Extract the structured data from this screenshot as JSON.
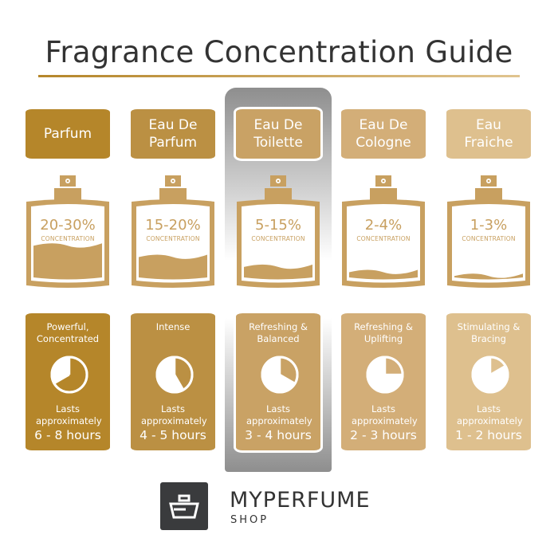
{
  "title": "Fragrance Concentration Guide",
  "concentration_label": "CONCENTRATION",
  "lasts_label": "Lasts approximately",
  "highlighted": "Eau De Toilette",
  "colors": {
    "bottle": "#c8a060",
    "highlight": "#8e8e8e"
  },
  "columns": [
    {
      "name_l1": "Parfum",
      "name_l2": "",
      "color": "#b5862a",
      "concentration": "20-30%",
      "fill_level": 0.45,
      "desc_l1": "Powerful,",
      "desc_l2": "Concentrated",
      "hours": "6 - 8 hours",
      "clock_hours": 8
    },
    {
      "name_l1": "Eau De",
      "name_l2": "Parfum",
      "color": "#bb9043",
      "concentration": "15-20%",
      "fill_level": 0.3,
      "desc_l1": "Intense",
      "desc_l2": "",
      "hours": "4 - 5 hours",
      "clock_hours": 5
    },
    {
      "name_l1": "Eau De",
      "name_l2": "Toilette",
      "color": "#c9a265",
      "concentration": "5-15%",
      "fill_level": 0.17,
      "desc_l1": "Refreshing &",
      "desc_l2": "Balanced",
      "hours": "3 - 4 hours",
      "clock_hours": 4
    },
    {
      "name_l1": "Eau De",
      "name_l2": "Cologne",
      "color": "#d3ae78",
      "concentration": "2-4%",
      "fill_level": 0.1,
      "desc_l1": "Refreshing &",
      "desc_l2": "Uplifting",
      "hours": "2 - 3 hours",
      "clock_hours": 3
    },
    {
      "name_l1": "Eau",
      "name_l2": "Fraiche",
      "color": "#dec08e",
      "concentration": "1-3%",
      "fill_level": 0.05,
      "desc_l1": "Stimulating &",
      "desc_l2": "Bracing",
      "hours": "1 - 2 hours",
      "clock_hours": 2
    }
  ],
  "logo": {
    "brand": "MYPERFUME",
    "sub": "SHOP"
  }
}
